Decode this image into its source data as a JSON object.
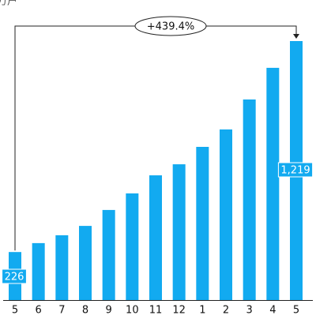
{
  "chart_data": {
    "type": "bar",
    "unit": "万户",
    "annotation": "+439.4%",
    "categories": [
      "5",
      "6",
      "7",
      "8",
      "9",
      "10",
      "11",
      "12",
      "1",
      "2",
      "3",
      "4",
      "5"
    ],
    "values": [
      226,
      268,
      305,
      349,
      424,
      502,
      587,
      639,
      721,
      803,
      944,
      1093,
      1219
    ],
    "value_labels": [
      "226",
      null,
      null,
      null,
      null,
      null,
      null,
      null,
      null,
      null,
      null,
      null,
      "1,219"
    ],
    "color": "#12aaf0"
  }
}
